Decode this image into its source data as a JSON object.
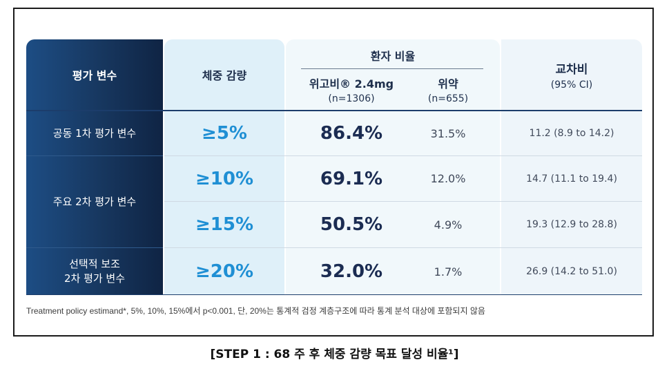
{
  "table": {
    "headers": {
      "variable": "평가 변수",
      "weight_loss": "체중 감량",
      "patient_ratio": "환자 비율",
      "drug_name": "위고비® 2.4mg",
      "drug_n": "(n=1306)",
      "placebo_name": "위약",
      "placebo_n": "(n=655)",
      "odds_ratio": "교차비",
      "ci": "(95% CI)"
    },
    "rows": [
      {
        "label": "공동 1차 평가 변수",
        "threshold": "≥5%",
        "drug": "86.4%",
        "placebo": "31.5%",
        "or": "11.2 (8.9 to 14.2)"
      },
      {
        "label": "주요 2차 평가 변수",
        "threshold": "≥10%",
        "drug": "69.1%",
        "placebo": "12.0%",
        "or": "14.7 (11.1 to 19.4)"
      },
      {
        "label": "",
        "threshold": "≥15%",
        "drug": "50.5%",
        "placebo": "4.9%",
        "or": "19.3 (12.9 to 28.8)"
      },
      {
        "label_line1": "선택적 보조",
        "label_line2": "2차 평가 변수",
        "threshold": "≥20%",
        "drug": "32.0%",
        "placebo": "1.7%",
        "or": "26.9 (14.2 to 51.0)"
      }
    ]
  },
  "footnote": "Treatment policy estimand*, 5%, 10%, 15%에서 p<0.001, 단, 20%는 통계적 검정 계층구조에 따라 통계 분석 대상에 포함되지 않음",
  "caption": "[STEP 1 : 68 주 후 체중 감량 목표 달성 비율¹]"
}
